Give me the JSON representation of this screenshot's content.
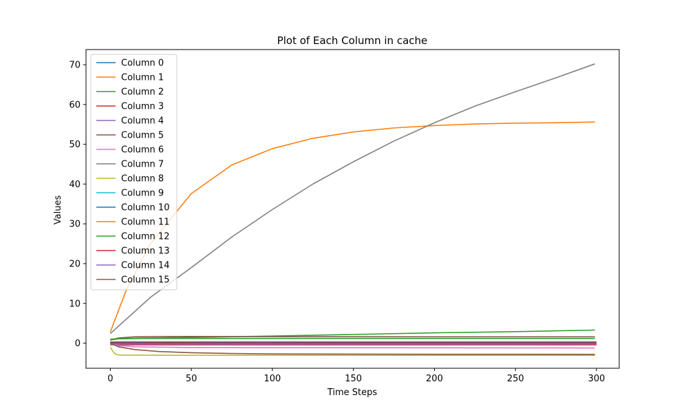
{
  "chart_data": {
    "type": "line",
    "title": "Plot of Each Column in cache",
    "xlabel": "Time Steps",
    "ylabel": "Values",
    "xlim": [
      -15,
      314
    ],
    "ylim": [
      -6.3,
      73.8
    ],
    "xticks": [
      0,
      50,
      100,
      150,
      200,
      250,
      300
    ],
    "yticks": [
      0,
      10,
      20,
      30,
      40,
      50,
      60,
      70
    ],
    "grid": false,
    "legend_position": "top-left",
    "colors": [
      "#1f77b4",
      "#ff7f0e",
      "#2ca02c",
      "#d62728",
      "#9467bd",
      "#8c564b",
      "#e377c2",
      "#7f7f7f",
      "#bcbd22",
      "#17becf",
      "#1f77b4",
      "#ff7f0e",
      "#2ca02c",
      "#d62728",
      "#9467bd",
      "#8c564b"
    ],
    "series": [
      {
        "name": "Column 0",
        "x": [
          0,
          300
        ],
        "y": [
          0.2,
          0.2
        ]
      },
      {
        "name": "Column 1",
        "x": [
          0,
          10,
          25,
          50,
          75,
          100,
          125,
          150,
          175,
          200,
          225,
          250,
          275,
          299
        ],
        "y": [
          2.8,
          13.5,
          25.2,
          37.6,
          44.8,
          48.9,
          51.5,
          53.1,
          54.1,
          54.7,
          55.1,
          55.3,
          55.4,
          55.6
        ]
      },
      {
        "name": "Column 2",
        "x": [
          0,
          5,
          20,
          50,
          100,
          150,
          200,
          250,
          299
        ],
        "y": [
          0.8,
          1.1,
          1.3,
          1.45,
          1.8,
          2.2,
          2.6,
          2.9,
          3.3
        ]
      },
      {
        "name": "Column 3",
        "x": [
          0,
          300
        ],
        "y": [
          -0.4,
          -0.4
        ]
      },
      {
        "name": "Column 4",
        "x": [
          0,
          300
        ],
        "y": [
          -0.1,
          -0.1
        ]
      },
      {
        "name": "Column 5",
        "x": [
          0,
          5,
          15,
          30,
          50,
          100,
          200,
          299
        ],
        "y": [
          0.8,
          1.3,
          1.6,
          1.7,
          1.7,
          1.65,
          1.6,
          1.6
        ]
      },
      {
        "name": "Column 6",
        "x": [
          0,
          5,
          15,
          50,
          299
        ],
        "y": [
          -0.2,
          -0.6,
          -0.9,
          -1.1,
          -1.2
        ]
      },
      {
        "name": "Column 7",
        "x": [
          0,
          25,
          50,
          75,
          100,
          125,
          150,
          175,
          200,
          225,
          250,
          275,
          299
        ],
        "y": [
          2.4,
          11.6,
          19.0,
          26.7,
          33.6,
          40.0,
          45.6,
          50.8,
          55.4,
          59.6,
          63.2,
          66.7,
          70.2
        ]
      },
      {
        "name": "Column 8",
        "x": [
          0,
          1.5,
          3,
          5,
          10,
          50,
          299
        ],
        "y": [
          -1.0,
          -2.0,
          -2.7,
          -2.95,
          -3.0,
          -3.05,
          -3.05
        ]
      },
      {
        "name": "Column 9",
        "x": [
          0,
          300
        ],
        "y": [
          0.1,
          0.1
        ]
      },
      {
        "name": "Column 10",
        "x": [
          0,
          300
        ],
        "y": [
          0.3,
          0.3
        ]
      },
      {
        "name": "Column 11",
        "x": [
          0,
          300
        ],
        "y": [
          0.0,
          0.0
        ]
      },
      {
        "name": "Column 12",
        "x": [
          0,
          5,
          20,
          100,
          299
        ],
        "y": [
          1.0,
          1.1,
          1.2,
          1.2,
          1.2
        ]
      },
      {
        "name": "Column 13",
        "x": [
          0,
          300
        ],
        "y": [
          0.05,
          0.05
        ]
      },
      {
        "name": "Column 14",
        "x": [
          0,
          300
        ],
        "y": [
          -0.2,
          -0.2
        ]
      },
      {
        "name": "Column 15",
        "x": [
          0,
          5,
          15,
          30,
          50,
          75,
          100,
          150,
          200,
          299
        ],
        "y": [
          0.0,
          -0.9,
          -1.6,
          -2.1,
          -2.4,
          -2.6,
          -2.7,
          -2.75,
          -2.78,
          -2.8
        ]
      }
    ]
  }
}
